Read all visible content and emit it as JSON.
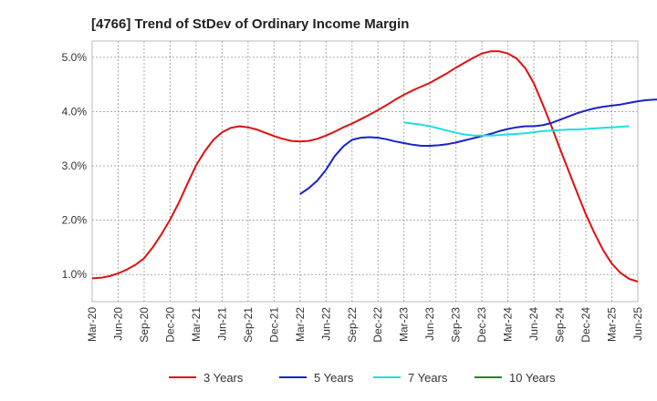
{
  "chart_data": {
    "type": "line",
    "title": "[4766]  Trend of StDev of Ordinary Income Margin",
    "xlabel": "",
    "ylabel": "",
    "x_tick_labels": [
      "Mar-20",
      "Jun-20",
      "Sep-20",
      "Dec-20",
      "Mar-21",
      "Jun-21",
      "Sep-21",
      "Dec-21",
      "Mar-22",
      "Jun-22",
      "Sep-22",
      "Dec-22",
      "Mar-23",
      "Jun-23",
      "Sep-23",
      "Dec-23",
      "Mar-24",
      "Jun-24",
      "Sep-24",
      "Dec-24",
      "Mar-25",
      "Jun-25"
    ],
    "y_ticks": [
      1.0,
      2.0,
      3.0,
      4.0,
      5.0
    ],
    "y_tick_labels": [
      "1.0%",
      "2.0%",
      "3.0%",
      "4.0%",
      "5.0%"
    ],
    "ylim": [
      0.5,
      5.3
    ],
    "grid": true,
    "legend_position": "bottom",
    "series": [
      {
        "name": "3 Years",
        "color": "#dd1111",
        "start_index": 0,
        "values": [
          0.93,
          0.94,
          0.97,
          1.02,
          1.09,
          1.18,
          1.3,
          1.5,
          1.74,
          2.01,
          2.32,
          2.67,
          3.01,
          3.27,
          3.48,
          3.62,
          3.7,
          3.73,
          3.71,
          3.67,
          3.61,
          3.55,
          3.5,
          3.46,
          3.45,
          3.46,
          3.5,
          3.56,
          3.63,
          3.71,
          3.78,
          3.86,
          3.94,
          4.03,
          4.12,
          4.22,
          4.31,
          4.39,
          4.46,
          4.53,
          4.62,
          4.71,
          4.81,
          4.9,
          4.99,
          5.07,
          5.11,
          5.11,
          5.07,
          4.98,
          4.8,
          4.52,
          4.14,
          3.74,
          3.32,
          2.91,
          2.5,
          2.11,
          1.76,
          1.45,
          1.2,
          1.03,
          0.92,
          0.87
        ]
      },
      {
        "name": "5 Years",
        "color": "#1a22cc",
        "start_index": 24,
        "values": [
          2.48,
          2.59,
          2.73,
          2.93,
          3.18,
          3.36,
          3.48,
          3.52,
          3.53,
          3.52,
          3.49,
          3.45,
          3.42,
          3.39,
          3.37,
          3.37,
          3.38,
          3.4,
          3.43,
          3.47,
          3.51,
          3.55,
          3.59,
          3.64,
          3.68,
          3.71,
          3.73,
          3.73,
          3.75,
          3.79,
          3.85,
          3.91,
          3.97,
          4.02,
          4.06,
          4.09,
          4.11,
          4.13,
          4.16,
          4.19,
          4.21,
          4.22,
          4.23,
          4.24,
          4.24,
          4.25,
          4.26,
          4.27,
          4.29,
          4.31,
          4.33,
          4.37
        ]
      },
      {
        "name": "7 Years",
        "color": "#22dddd",
        "start_index": 36,
        "values": [
          3.8,
          3.78,
          3.76,
          3.73,
          3.69,
          3.65,
          3.61,
          3.58,
          3.56,
          3.56,
          3.56,
          3.57,
          3.58,
          3.59,
          3.6,
          3.62,
          3.64,
          3.65,
          3.66,
          3.67,
          3.67,
          3.68,
          3.69,
          3.7,
          3.71,
          3.72,
          3.73
        ]
      },
      {
        "name": "10 Years",
        "color": "#228822",
        "start_index": 0,
        "values": []
      }
    ]
  }
}
